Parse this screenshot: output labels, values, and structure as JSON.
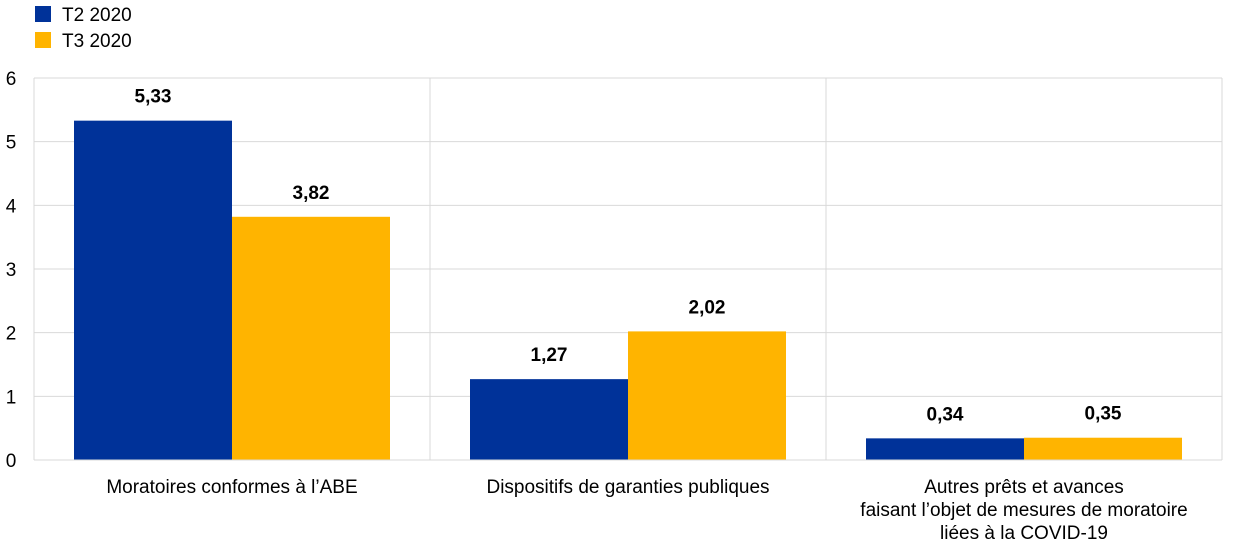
{
  "chart_data": {
    "type": "bar",
    "title": "",
    "xlabel": "",
    "ylabel": "",
    "ylim": [
      0,
      6
    ],
    "yticks": [
      0,
      1,
      2,
      3,
      4,
      5,
      6
    ],
    "categories": [
      [
        "Moratoires conformes à l’ABE"
      ],
      [
        "Dispositifs de garanties publiques"
      ],
      [
        "Autres prêts et avances",
        "faisant l’objet de mesures de moratoire",
        "liées à la COVID-19"
      ]
    ],
    "series": [
      {
        "name": "T2 2020",
        "color": "#003299",
        "values": [
          5.33,
          1.27,
          0.34
        ],
        "labels": [
          "5,33",
          "1,27",
          "0,34"
        ]
      },
      {
        "name": "T3 2020",
        "color": "#FFB400",
        "values": [
          3.82,
          2.02,
          0.35
        ],
        "labels": [
          "3,82",
          "2,02",
          "0,35"
        ]
      }
    ],
    "grid": true,
    "legend": "top-left"
  }
}
